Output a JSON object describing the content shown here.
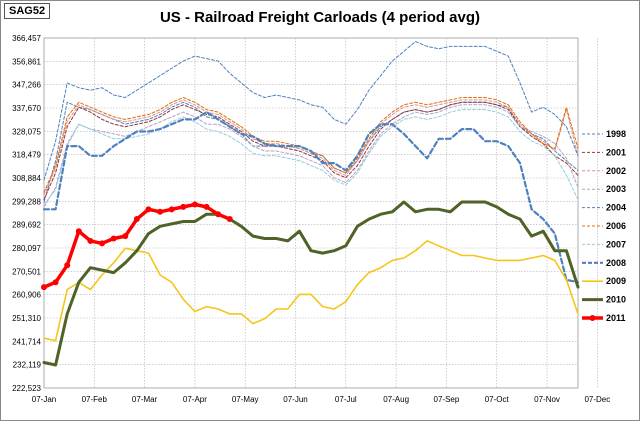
{
  "badge": "SAG52",
  "chart_data": {
    "type": "line",
    "title": "US - Railroad Freight Carloads (4 period avg)",
    "x_labels": [
      "07-Jan",
      "07-Feb",
      "07-Mar",
      "07-Apr",
      "07-May",
      "07-Jun",
      "07-Jul",
      "07-Aug",
      "07-Sep",
      "07-Oct",
      "07-Nov",
      "07-Dec"
    ],
    "y_ticks": [
      "366,457",
      "356,861",
      "347,266",
      "337,670",
      "328,075",
      "318,479",
      "308,884",
      "299,288",
      "289,692",
      "280,097",
      "270,501",
      "260,906",
      "251,310",
      "241,714",
      "232,119",
      "222,523"
    ],
    "ylim": [
      222523,
      366457
    ],
    "grid": true,
    "legend_position": "right",
    "series": [
      {
        "name": "1998",
        "color": "#4f81bd",
        "style": "dashed",
        "width": 1,
        "values": [
          299000,
          316000,
          340000,
          338000,
          337000,
          335000,
          333000,
          331000,
          332000,
          333000,
          335000,
          338000,
          340000,
          338000,
          334000,
          333000,
          330000,
          327000,
          322000,
          322000,
          323000,
          322000,
          321000,
          319000,
          318000,
          313000,
          311000,
          316000,
          324000,
          330000,
          333000,
          336000,
          337000,
          336000,
          337000,
          339000,
          340000,
          340000,
          340000,
          339000,
          338000,
          330000,
          327000,
          325000,
          320000,
          316000,
          312000
        ]
      },
      {
        "name": "2001",
        "color": "#953735",
        "style": "dashed",
        "width": 1,
        "values": [
          300000,
          311000,
          330000,
          338000,
          336000,
          333000,
          331000,
          330000,
          331000,
          332000,
          334000,
          337000,
          339000,
          337000,
          335000,
          334000,
          331000,
          328000,
          324000,
          322000,
          322000,
          321000,
          320000,
          318000,
          316000,
          311000,
          309000,
          314000,
          322000,
          329000,
          333000,
          336000,
          337000,
          336000,
          337000,
          339000,
          340000,
          340000,
          340000,
          339000,
          337000,
          330000,
          326000,
          323000,
          318000,
          315000,
          310000
        ]
      },
      {
        "name": "2002",
        "color": "#d99694",
        "style": "dashed",
        "width": 1,
        "values": [
          302000,
          313000,
          332000,
          339000,
          337000,
          335000,
          333000,
          332000,
          333000,
          334000,
          336000,
          339000,
          341000,
          339000,
          336000,
          335000,
          332000,
          329000,
          325000,
          323000,
          323000,
          322000,
          321000,
          319000,
          317000,
          312000,
          310000,
          316000,
          324000,
          331000,
          335000,
          338000,
          339000,
          338000,
          339000,
          340000,
          341000,
          341000,
          341000,
          340000,
          338000,
          331000,
          327000,
          324000,
          320000,
          337000,
          318000
        ]
      },
      {
        "name": "2003",
        "color": "#b3a2c7",
        "style": "dashed",
        "width": 1,
        "values": [
          297000,
          305000,
          323000,
          331000,
          329000,
          328000,
          327000,
          326000,
          328000,
          330000,
          332000,
          334000,
          336000,
          334000,
          331000,
          331000,
          329000,
          326000,
          322000,
          320000,
          320000,
          319000,
          318000,
          316000,
          314000,
          309000,
          307000,
          312000,
          320000,
          327000,
          331000,
          334000,
          336000,
          335000,
          336000,
          338000,
          339000,
          339000,
          339000,
          338000,
          336000,
          330000,
          328000,
          326000,
          323000,
          317000,
          305000
        ]
      },
      {
        "name": "2004",
        "color": "#4f81bd",
        "style": "dashed",
        "width": 1,
        "values": [
          308000,
          324000,
          348000,
          346000,
          345000,
          346000,
          343000,
          342000,
          345000,
          348000,
          351000,
          354000,
          357000,
          359000,
          358000,
          357000,
          352000,
          348000,
          344000,
          342000,
          343000,
          342000,
          341000,
          339000,
          338000,
          333000,
          331000,
          337000,
          345000,
          351000,
          357000,
          361000,
          365000,
          363000,
          362000,
          363000,
          363000,
          363000,
          363000,
          361000,
          359000,
          348000,
          336000,
          338000,
          335000,
          330000,
          318000
        ]
      },
      {
        "name": "2006",
        "color": "#e46c0a",
        "style": "dashed",
        "width": 1,
        "values": [
          303000,
          314000,
          334000,
          340000,
          338000,
          336000,
          334000,
          333000,
          334000,
          335000,
          337000,
          340000,
          342000,
          340000,
          337000,
          336000,
          333000,
          330000,
          326000,
          324000,
          324000,
          323000,
          322000,
          320000,
          318000,
          313000,
          311000,
          317000,
          325000,
          332000,
          336000,
          339000,
          340000,
          339000,
          340000,
          341000,
          342000,
          342000,
          342000,
          341000,
          339000,
          332000,
          327000,
          323000,
          321000,
          338000,
          321000
        ]
      },
      {
        "name": "2007",
        "color": "#92cddc",
        "style": "dashed",
        "width": 1,
        "values": [
          298000,
          304000,
          322000,
          331000,
          329000,
          327000,
          325000,
          325000,
          326000,
          327000,
          329000,
          332000,
          334000,
          332000,
          329000,
          328000,
          326000,
          323000,
          319000,
          318000,
          318000,
          317000,
          316000,
          314000,
          312000,
          308000,
          306000,
          311000,
          319000,
          326000,
          330000,
          333000,
          334000,
          333000,
          334000,
          336000,
          337000,
          337000,
          337000,
          336000,
          334000,
          328000,
          324000,
          322000,
          318000,
          310000,
          300000
        ]
      },
      {
        "name": "2008",
        "color": "#4f81bd",
        "style": "dashed",
        "width": 2.2,
        "values": [
          296000,
          296000,
          322000,
          322000,
          318000,
          318000,
          322000,
          325000,
          328000,
          328000,
          329000,
          331000,
          333000,
          333000,
          336000,
          333000,
          330000,
          327000,
          326000,
          323000,
          322000,
          322000,
          322000,
          320000,
          315000,
          315000,
          312000,
          318000,
          327000,
          331000,
          331000,
          327000,
          322000,
          317000,
          325000,
          325000,
          329000,
          329000,
          324000,
          324000,
          322000,
          315000,
          296000,
          292000,
          286000,
          267000,
          266000
        ]
      },
      {
        "name": "2009",
        "color": "#f5c518",
        "style": "solid",
        "width": 1.6,
        "values": [
          243000,
          242000,
          263000,
          266000,
          263000,
          269000,
          274000,
          280000,
          279000,
          278000,
          269000,
          266000,
          259000,
          254000,
          256000,
          255000,
          253000,
          253000,
          249000,
          251000,
          255000,
          255000,
          261000,
          261000,
          256000,
          255000,
          258000,
          265000,
          270000,
          272000,
          275000,
          276000,
          279000,
          283000,
          281000,
          279000,
          277000,
          277000,
          276000,
          275000,
          275000,
          275000,
          276000,
          277000,
          275000,
          267000,
          253000
        ]
      },
      {
        "name": "2010",
        "color": "#4f6228",
        "style": "solid",
        "width": 3,
        "values": [
          233000,
          232000,
          253000,
          266000,
          272000,
          271000,
          270000,
          274000,
          279000,
          286000,
          289000,
          290000,
          291000,
          291000,
          294000,
          294000,
          292000,
          289000,
          285000,
          284000,
          284000,
          283000,
          287000,
          279000,
          278000,
          279000,
          281000,
          289000,
          292000,
          294000,
          295000,
          299000,
          295000,
          296000,
          296000,
          295000,
          299000,
          299000,
          299000,
          297000,
          294000,
          292000,
          285000,
          287000,
          279000,
          279000,
          264000
        ]
      },
      {
        "name": "2011",
        "color": "#ff0000",
        "style": "solid",
        "width": 3.5,
        "markers": true,
        "values": [
          264000,
          266000,
          273000,
          287000,
          283000,
          282000,
          284000,
          285000,
          292000,
          296000,
          295000,
          296000,
          297000,
          298000,
          297000,
          294000,
          292000
        ]
      }
    ]
  }
}
